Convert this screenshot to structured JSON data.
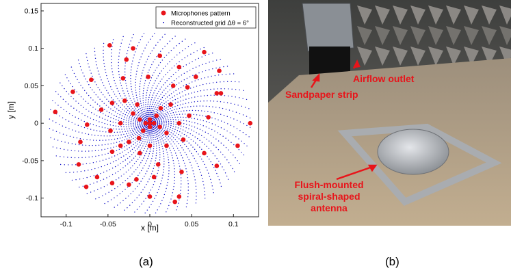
{
  "panel_a": {
    "caption": "(a)",
    "chart_data": {
      "type": "scatter",
      "title": "",
      "xlabel": "x [m]",
      "ylabel": "y [m]",
      "xlim": [
        -0.13,
        0.13
      ],
      "ylim": [
        -0.125,
        0.16
      ],
      "xticks": [
        -0.1,
        -0.05,
        0,
        0.05,
        0.1
      ],
      "xtick_labels": [
        "-0.1",
        "-0.05",
        "0",
        "0.05",
        "0.1"
      ],
      "yticks": [
        -0.1,
        -0.05,
        0,
        0.05,
        0.1,
        0.15
      ],
      "ytick_labels": [
        "-0.1",
        "-0.05",
        "0",
        "0.05",
        "0.1",
        "0.15"
      ],
      "grid": false,
      "legend_position": "top-right",
      "series": [
        {
          "name": "Microphones pattern",
          "marker": "filled-circle",
          "color": "#e8141a",
          "points": [
            [
              0.0,
              0.0
            ],
            [
              -0.005,
              0.0
            ],
            [
              0.005,
              0.0
            ],
            [
              0.0,
              0.005
            ],
            [
              0.0,
              -0.005
            ],
            [
              -0.012,
              0.005
            ],
            [
              0.012,
              -0.005
            ],
            [
              -0.008,
              -0.01
            ],
            [
              0.008,
              0.01
            ],
            [
              -0.02,
              0.013
            ],
            [
              0.013,
              0.02
            ],
            [
              0.02,
              -0.013
            ],
            [
              -0.013,
              -0.02
            ],
            [
              -0.03,
              0.03
            ],
            [
              -0.035,
              0.0
            ],
            [
              -0.025,
              -0.025
            ],
            [
              0.0,
              -0.03
            ],
            [
              0.02,
              -0.03
            ],
            [
              0.035,
              0.0
            ],
            [
              0.025,
              0.025
            ],
            [
              -0.015,
              0.025
            ],
            [
              -0.045,
              0.027
            ],
            [
              -0.058,
              0.018
            ],
            [
              -0.047,
              -0.01
            ],
            [
              -0.045,
              -0.038
            ],
            [
              -0.012,
              -0.04
            ],
            [
              0.01,
              -0.055
            ],
            [
              0.04,
              -0.022
            ],
            [
              0.047,
              0.01
            ],
            [
              0.045,
              0.048
            ],
            [
              0.028,
              0.05
            ],
            [
              -0.002,
              0.062
            ],
            [
              -0.032,
              0.06
            ],
            [
              -0.07,
              0.058
            ],
            [
              -0.075,
              -0.002
            ],
            [
              -0.083,
              -0.025
            ],
            [
              -0.063,
              -0.072
            ],
            [
              -0.025,
              -0.082
            ],
            [
              0.005,
              -0.072
            ],
            [
              0.038,
              -0.065
            ],
            [
              0.065,
              -0.04
            ],
            [
              0.07,
              0.008
            ],
            [
              0.08,
              0.04
            ],
            [
              0.055,
              0.062
            ],
            [
              -0.092,
              0.042
            ],
            [
              -0.113,
              0.015
            ],
            [
              -0.085,
              -0.055
            ],
            [
              -0.076,
              -0.085
            ],
            [
              -0.045,
              -0.08
            ],
            [
              -0.016,
              -0.075
            ],
            [
              0.0,
              -0.098
            ],
            [
              0.03,
              -0.105
            ],
            [
              0.08,
              -0.057
            ],
            [
              0.105,
              -0.03
            ],
            [
              0.12,
              0.0
            ],
            [
              0.085,
              0.04
            ],
            [
              0.083,
              0.07
            ],
            [
              0.065,
              0.095
            ],
            [
              0.035,
              0.075
            ],
            [
              0.012,
              0.09
            ],
            [
              -0.02,
              0.1
            ],
            [
              -0.048,
              0.104
            ],
            [
              0.035,
              -0.098
            ],
            [
              -0.035,
              -0.03
            ],
            [
              -0.028,
              0.085
            ]
          ]
        },
        {
          "name": "Reconstructed grid Δθ = 6°",
          "marker": "dot",
          "color": "#1414c8",
          "description_of_pattern": "spiral grid of dots densely filling a circle of radius ~0.12 m, denser near the center"
        }
      ]
    }
  },
  "panel_b": {
    "caption": "(b)",
    "labels": {
      "airflow": "Airflow outlet",
      "sandpaper": "Sandpaper strip",
      "antenna_line1": "Flush-mounted",
      "antenna_line2": "spiral-shaped",
      "antenna_line3": "antenna"
    },
    "colors": {
      "label": "#e8141a",
      "floor": "#b9a58a",
      "wall": "#5a5a58"
    }
  }
}
